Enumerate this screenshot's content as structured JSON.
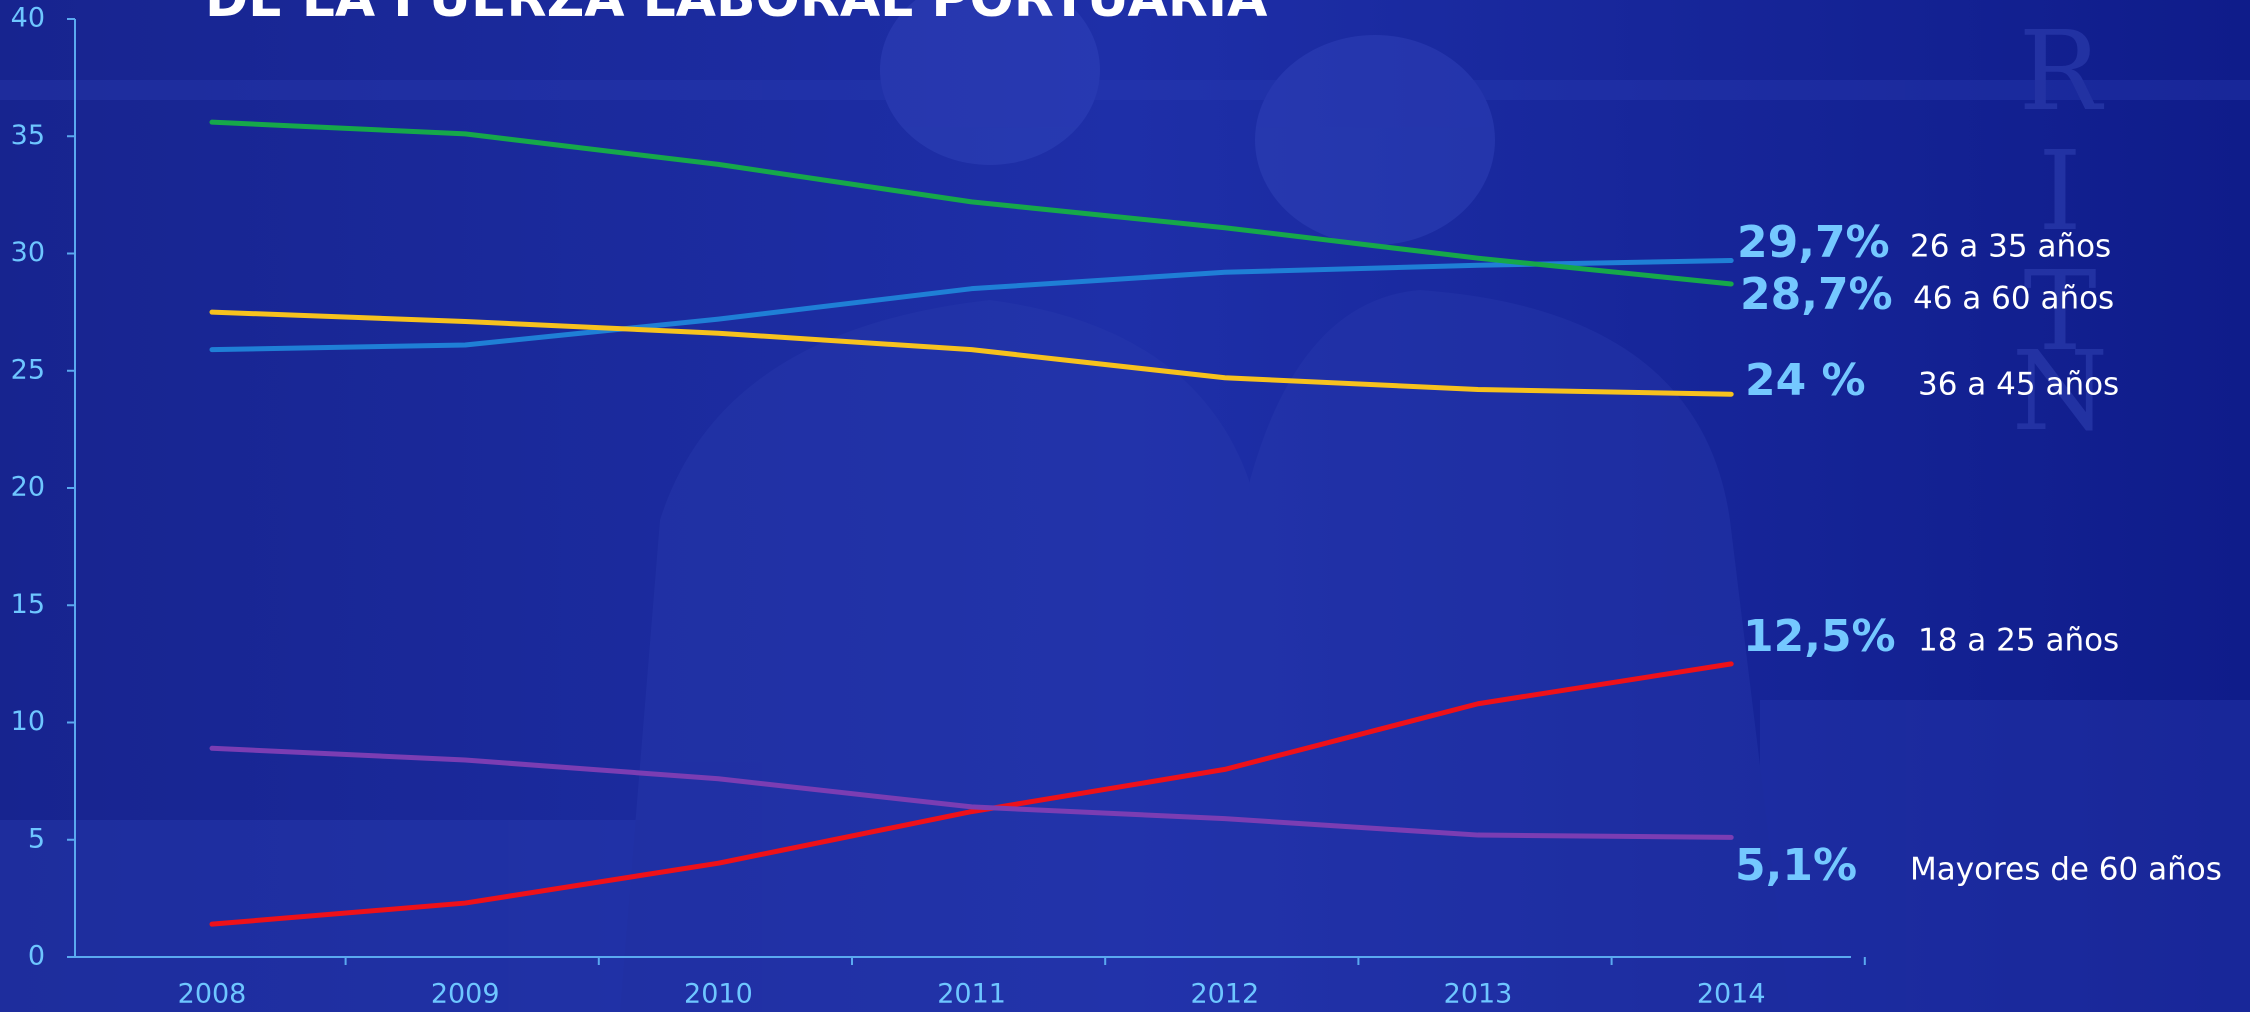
{
  "chart_data": {
    "type": "line",
    "title": "DE LA FUERZA LABORAL PORTUARIA",
    "categories": [
      "2008",
      "2009",
      "2010",
      "2011",
      "2012",
      "2013",
      "2014"
    ],
    "series": [
      {
        "name": "26 a 35 años",
        "color": "#1f7fd6",
        "values": [
          25.9,
          26.1,
          27.2,
          28.5,
          29.2,
          29.5,
          29.7
        ],
        "value_labels": [
          null,
          null,
          null,
          null,
          null,
          null,
          "29,7%"
        ]
      },
      {
        "name": "46 a 60 años",
        "color": "#16a84a",
        "values": [
          35.6,
          35.1,
          33.8,
          32.2,
          31.1,
          29.8,
          28.7
        ],
        "value_labels": [
          null,
          null,
          null,
          null,
          null,
          null,
          "28,7%"
        ]
      },
      {
        "name": "36 a 45 años",
        "color": "#f7c21e",
        "values": [
          27.5,
          27.1,
          26.6,
          25.9,
          24.7,
          24.2,
          24
        ],
        "value_labels": [
          null,
          null,
          null,
          null,
          null,
          null,
          "24 %"
        ]
      },
      {
        "name": "18 a 25 años",
        "color": "#ee1119",
        "values": [
          1.4,
          2.3,
          4.0,
          6.2,
          8.0,
          10.8,
          12.5
        ],
        "value_labels": [
          null,
          null,
          null,
          null,
          null,
          null,
          "12,5%"
        ]
      },
      {
        "name": "Mayores de 60 años",
        "color": "#7b3db3",
        "values": [
          8.9,
          8.4,
          7.6,
          6.4,
          5.9,
          5.2,
          5.1
        ],
        "value_labels": [
          null,
          null,
          null,
          null,
          null,
          null,
          "5,1%"
        ]
      }
    ],
    "ylim": [
      0,
      40
    ],
    "yticks": [
      0,
      5,
      10,
      15,
      20,
      25,
      30,
      35,
      40
    ],
    "grid": false
  }
}
